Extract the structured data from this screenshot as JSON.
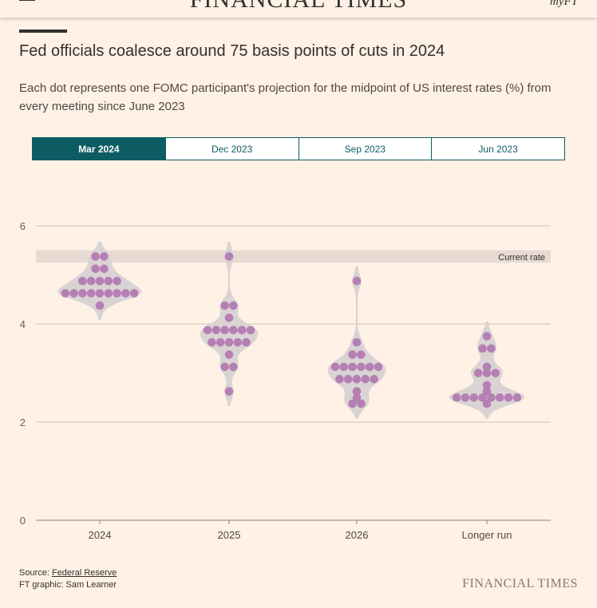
{
  "header": {
    "masthead": "FINANCIAL TIMES",
    "myft": "myFT"
  },
  "title": "Fed officials coalesce around 75 basis points of cuts in 2024",
  "subtitle": "Each dot represents one FOMC participant's projection for the midpoint of US interest rates (%) from every meeting since June 2023",
  "tabs": [
    {
      "label": "Mar 2024",
      "active": true
    },
    {
      "label": "Dec 2023",
      "active": false
    },
    {
      "label": "Sep 2023",
      "active": false
    },
    {
      "label": "Jun 2023",
      "active": false
    }
  ],
  "colors": {
    "dot": "#B57FB4",
    "violin": "#D9D4D3",
    "band": "#E6DAD2",
    "accent": "#0D5C63",
    "grid": "#CCC1B7"
  },
  "chart_data": {
    "type": "scatter",
    "subtype": "beeswarm-with-violin",
    "ylim": [
      0,
      6
    ],
    "yticks": [
      0,
      2,
      4,
      6
    ],
    "categories": [
      "2024",
      "2025",
      "2026",
      "Longer run"
    ],
    "current_rate": {
      "label": "Current rate",
      "low": 5.25,
      "high": 5.5
    },
    "rows": [
      {
        "category": "2024",
        "rows": [
          {
            "value": 5.375,
            "count": 2
          },
          {
            "value": 5.125,
            "count": 2
          },
          {
            "value": 4.875,
            "count": 5
          },
          {
            "value": 4.625,
            "count": 9
          },
          {
            "value": 4.375,
            "count": 1
          }
        ]
      },
      {
        "category": "2025",
        "rows": [
          {
            "value": 5.375,
            "count": 1
          },
          {
            "value": 4.375,
            "count": 2
          },
          {
            "value": 4.125,
            "count": 1
          },
          {
            "value": 3.875,
            "count": 6
          },
          {
            "value": 3.625,
            "count": 5
          },
          {
            "value": 3.375,
            "count": 1
          },
          {
            "value": 3.125,
            "count": 2
          },
          {
            "value": 2.625,
            "count": 1
          }
        ]
      },
      {
        "category": "2026",
        "rows": [
          {
            "value": 4.875,
            "count": 1
          },
          {
            "value": 3.625,
            "count": 1
          },
          {
            "value": 3.375,
            "count": 2
          },
          {
            "value": 3.125,
            "count": 6
          },
          {
            "value": 2.875,
            "count": 5
          },
          {
            "value": 2.625,
            "count": 1
          },
          {
            "value": 2.5,
            "count": 1
          },
          {
            "value": 2.375,
            "count": 2
          }
        ]
      },
      {
        "category": "Longer run",
        "rows": [
          {
            "value": 3.75,
            "count": 1
          },
          {
            "value": 3.5,
            "count": 2
          },
          {
            "value": 3.125,
            "count": 1
          },
          {
            "value": 3.0,
            "count": 3
          },
          {
            "value": 2.75,
            "count": 1
          },
          {
            "value": 2.625,
            "count": 1
          },
          {
            "value": 2.5,
            "count": 8
          },
          {
            "value": 2.375,
            "count": 1
          }
        ]
      }
    ]
  },
  "source": {
    "prefix": "Source: ",
    "link": "Federal Reserve",
    "credit": "FT graphic: Sam Learner"
  },
  "footer_logo": "FINANCIAL TIMES"
}
